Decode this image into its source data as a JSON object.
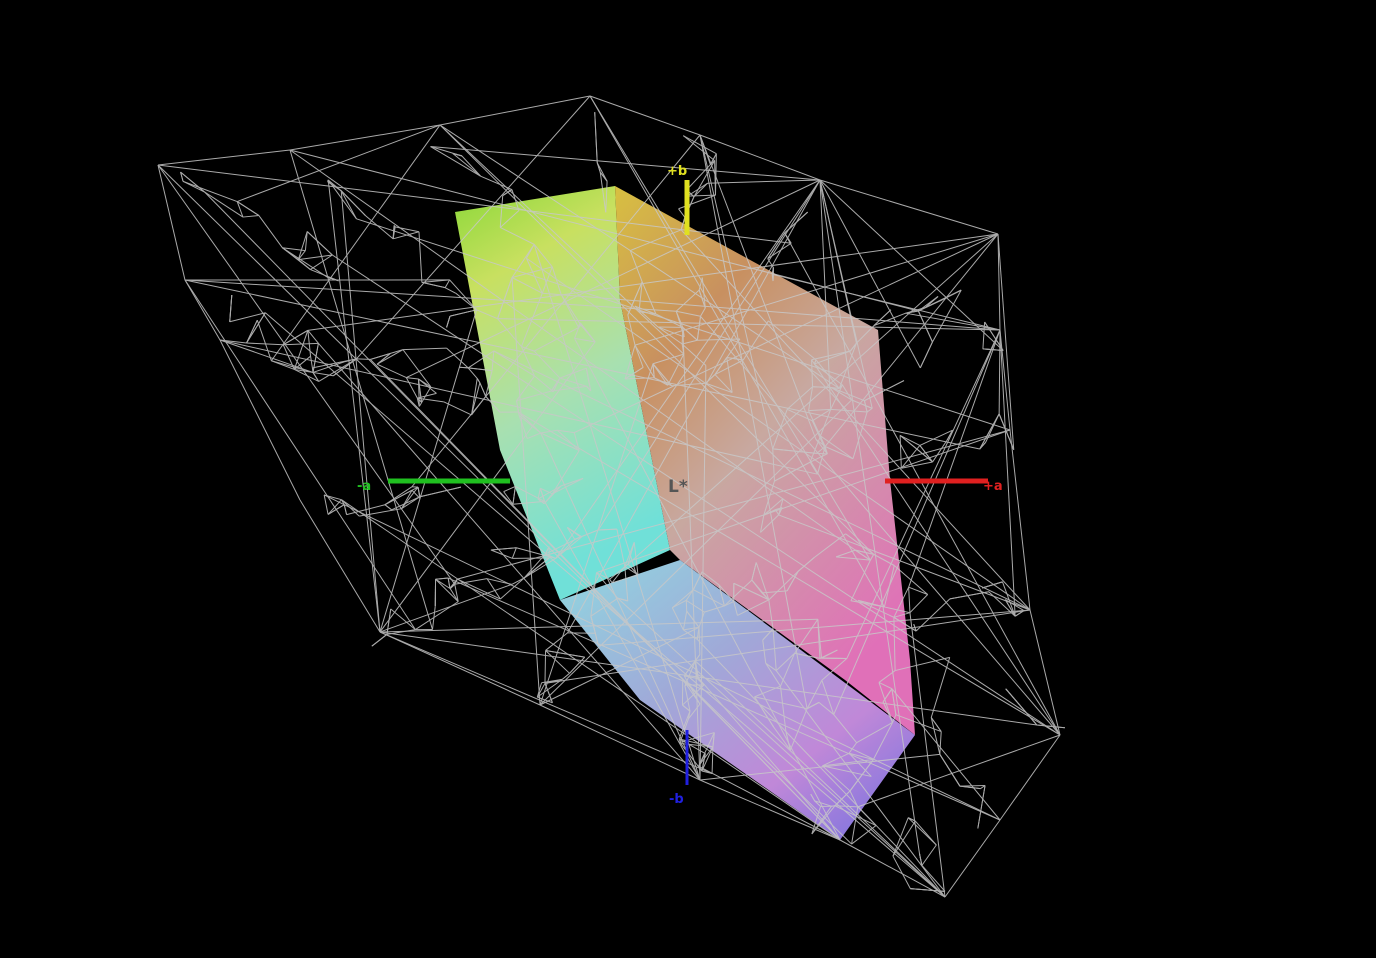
{
  "axes": {
    "plus_b": {
      "label": "+b",
      "color": "#e0e020"
    },
    "minus_b": {
      "label": "-b",
      "color": "#2020e0"
    },
    "plus_a": {
      "label": "+a",
      "color": "#e02020"
    },
    "minus_a": {
      "label": "-a",
      "color": "#20c020"
    },
    "lightness": {
      "label": "L*",
      "color": "#555555"
    }
  },
  "colors": {
    "background": "#000000",
    "wireframe": "#c8c8c8"
  }
}
